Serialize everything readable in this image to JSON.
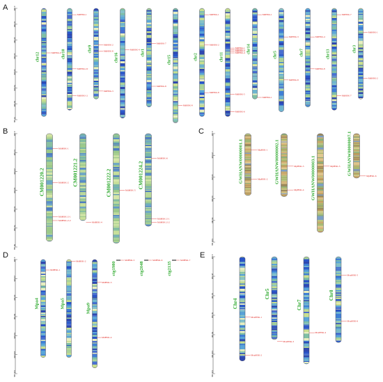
{
  "panels": [
    {
      "letter": "A",
      "axis_unit": "Mb",
      "axis_ticks": [
        "0 Mb",
        "10 Mb",
        "20 Mb",
        "30 Mb",
        "40 Mb",
        "50 Mb",
        "60 Mb",
        "70 Mb"
      ],
      "axis_max": 70,
      "palette": "blue",
      "chromosomes": [
        {
          "name": "chr12",
          "length": 68,
          "genes": [
            {
              "label": "MdHSK-9",
              "pos": 28
            }
          ]
        },
        {
          "name": "chr10",
          "length": 64,
          "genes": [
            {
              "label": "MdHSK-1",
              "pos": 4
            },
            {
              "label": "MdHSK-10",
              "pos": 38
            },
            {
              "label": "MdHSK-11",
              "pos": 55
            }
          ]
        },
        {
          "name": "chr9",
          "length": 57,
          "genes": [
            {
              "label": "MdHSK-2",
              "pos": 23
            },
            {
              "label": "MdHSK-8",
              "pos": 27
            },
            {
              "label": "MdHSK-3",
              "pos": 52
            }
          ]
        },
        {
          "name": "chr16",
          "length": 69,
          "genes": [
            {
              "label": "MdHSK-4",
              "pos": 26
            }
          ]
        },
        {
          "name": "chr1",
          "length": 62,
          "genes": [
            {
              "label": "MdHSK-7",
              "pos": 22
            },
            {
              "label": "MdHSK-8",
              "pos": 49
            }
          ]
        },
        {
          "name": "chr15",
          "length": 72,
          "genes": [
            {
              "label": "MdHSK-9",
              "pos": 61
            }
          ]
        },
        {
          "name": "chr2",
          "length": 68,
          "genes": [
            {
              "label": "MdHSK-1",
              "pos": 4
            },
            {
              "label": "MdHSK-2",
              "pos": 23
            },
            {
              "label": "MdHSK-8",
              "pos": 53
            }
          ]
        },
        {
          "name": "chr11",
          "length": 68,
          "genes": [
            {
              "label": "MdHSK-1",
              "pos": 25
            },
            {
              "label": "MdHSK-2",
              "pos": 26
            },
            {
              "label": "MdHSK-3",
              "pos": 27
            },
            {
              "label": "MdHSK-4",
              "pos": 28
            },
            {
              "label": "MdHSK-5",
              "pos": 54
            },
            {
              "label": "MdHSK-6",
              "pos": 65
            }
          ]
        },
        {
          "name": "chr14",
          "length": 57,
          "genes": [
            {
              "label": "MdHSK-1",
              "pos": 4
            },
            {
              "label": "MdHSK-1",
              "pos": 56
            }
          ]
        },
        {
          "name": "chr5",
          "length": 65,
          "genes": [
            {
              "label": "MdHSK-3",
              "pos": 18
            },
            {
              "label": "MdHSK-8",
              "pos": 45
            }
          ]
        },
        {
          "name": "chr7",
          "length": 62,
          "genes": [
            {
              "label": "MdHSK-4",
              "pos": 18
            },
            {
              "label": "MdHSK-8",
              "pos": 38
            }
          ]
        },
        {
          "name": "chr13",
          "length": 64,
          "genes": [
            {
              "label": "MdHSK-7",
              "pos": 4
            },
            {
              "label": "MdHSK-7",
              "pos": 55
            }
          ]
        },
        {
          "name": "chr3",
          "length": 57,
          "genes": [
            {
              "label": "MdHSK-1",
              "pos": 15
            },
            {
              "label": "MdHSK-2",
              "pos": 44
            }
          ]
        }
      ]
    },
    {
      "letter": "B",
      "axis_unit": "Mb",
      "axis_ticks": [
        "0 Mb",
        "10 Mb",
        "20 Mb",
        "30 Mb",
        "40 Mb",
        "50 Mb",
        "60 Mb"
      ],
      "axis_max": 60,
      "palette": "green",
      "chromosomes": [
        {
          "name": "CM001220.2",
          "length": 57,
          "genes": [
            {
              "label": "MdHSK-1",
              "pos": 8
            },
            {
              "label": "MdHSK-2",
              "pos": 26
            },
            {
              "label": "MdHSK-2-1",
              "pos": 44
            },
            {
              "label": "MdHSK-2-2",
              "pos": 46
            }
          ]
        },
        {
          "name": "CM001221.2",
          "length": 46,
          "genes": [
            {
              "label": "MdHSK-4",
              "pos": 47
            }
          ]
        },
        {
          "name": "CM001222.2",
          "length": 58,
          "genes": [
            {
              "label": "MdHSK-5",
              "pos": 30
            }
          ]
        },
        {
          "name": "CM001224.2",
          "length": 49,
          "genes": [
            {
              "label": "MdHSK-6",
              "pos": 13
            },
            {
              "label": "MdHSK-2-1",
              "pos": 45
            },
            {
              "label": "MdHSK-2-2",
              "pos": 47
            }
          ]
        }
      ]
    },
    {
      "letter": "C",
      "axis_unit": "Mb",
      "axis_ticks": [
        "0 Mb",
        "20 Mb",
        "40 Mb",
        "60 Mb",
        "80 Mb",
        "100 Mb"
      ],
      "axis_max": 100,
      "palette": "tan",
      "chromosomes": [
        {
          "name": "GWHANW00000001.1",
          "length": 57,
          "genes": [
            {
              "label": "MpHSK-1",
              "pos": 15
            },
            {
              "label": "MpHSK-2",
              "pos": 42
            }
          ]
        },
        {
          "name": "GWHANW00000002.1",
          "length": 58,
          "genes": [
            {
              "label": "MpHSK-3",
              "pos": 30
            },
            {
              "label": "MpHSK-4",
              "pos": 52
            }
          ]
        },
        {
          "name": "GWHANW00000003.1",
          "length": 91,
          "genes": [
            {
              "label": "MpHSK-5",
              "pos": 30
            }
          ]
        },
        {
          "name": "GWHANW00000007.1",
          "length": 41,
          "genes": [
            {
              "label": "MpHSK-6",
              "pos": 39
            }
          ]
        }
      ]
    },
    {
      "letter": "D",
      "axis_unit": "Mb",
      "axis_ticks": [
        "0 Mb",
        "20 Mb",
        "40 Mb",
        "60 Mb",
        "80 Mb",
        "100 Mb",
        "120 Mb"
      ],
      "axis_max": 120,
      "palette": "blue",
      "chromosomes": [
        {
          "name": "Mpa4",
          "length": 103,
          "genes": [
            {
              "label": "MdHSK-1",
              "pos": 11
            }
          ]
        },
        {
          "name": "Mpa5",
          "length": 103,
          "genes": [
            {
              "label": "MdHSK-2",
              "pos": 2
            }
          ]
        },
        {
          "name": "Mpa9",
          "length": 114,
          "genes": [
            {
              "label": "MdHSK-3",
              "pos": 24
            },
            {
              "label": "MdHSK-4",
              "pos": 82
            }
          ]
        }
      ],
      "contigs": [
        {
          "name": "ctg1980",
          "gene": "MdHSK-5"
        },
        {
          "name": "ctg2048",
          "gene": "MdHSK-6"
        },
        {
          "name": "ctg2135",
          "gene": "MdHSK-7"
        }
      ]
    },
    {
      "letter": "E",
      "axis_unit": "Mb",
      "axis_ticks": [
        "0 Mb",
        "20 Mb",
        "40 Mb",
        "60 Mb",
        "80 Mb",
        "100 Mb",
        "120 Mb"
      ],
      "axis_max": 120,
      "palette": "blue",
      "chromosomes": [
        {
          "name": "Chr4",
          "length": 107,
          "genes": [
            {
              "label": "MsuHSK-1",
              "pos": 62
            },
            {
              "label": "MsuHSK-2",
              "pos": 101
            }
          ]
        },
        {
          "name": "Chr5",
          "length": 85,
          "genes": [
            {
              "label": "MsuHSK-3",
              "pos": 87
            }
          ]
        },
        {
          "name": "Chr7",
          "length": 110,
          "genes": [
            {
              "label": "MsuHSK-4",
              "pos": 78
            }
          ]
        },
        {
          "name": "Chr8",
          "length": 88,
          "genes": [
            {
              "label": "MsuHSK-5",
              "pos": 19
            },
            {
              "label": "MsuHSK-6",
              "pos": 66
            }
          ]
        }
      ]
    }
  ]
}
